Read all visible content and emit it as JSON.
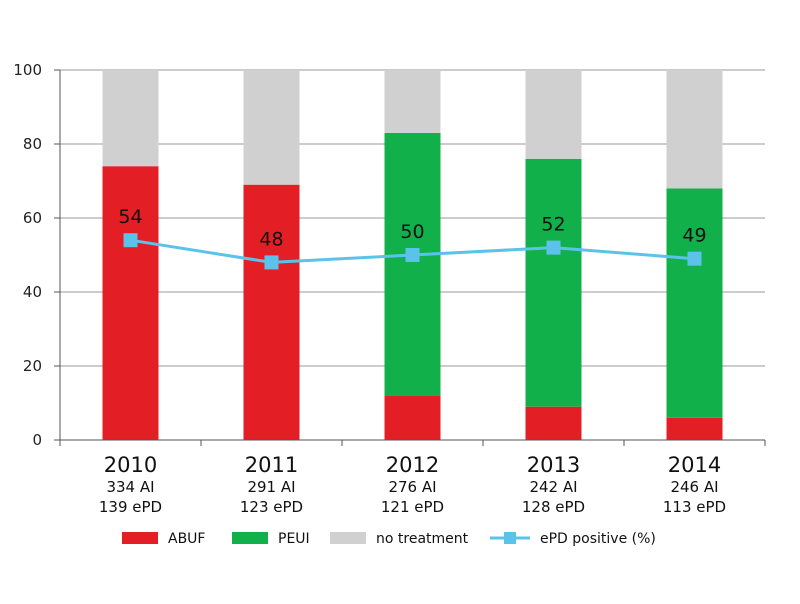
{
  "chart_data": {
    "type": "bar",
    "subtype": "stacked-bar-with-line",
    "title": "",
    "xlabel": "",
    "ylabel": "",
    "ylim": [
      0,
      100
    ],
    "yticks": [
      0,
      20,
      40,
      60,
      80,
      100
    ],
    "grid": true,
    "legend_position": "bottom",
    "categories": [
      "2010",
      "2011",
      "2012",
      "2013",
      "2014"
    ],
    "category_sublabels": [
      [
        "334 AI",
        "139 ePD"
      ],
      [
        "291 AI",
        "123 ePD"
      ],
      [
        "276 AI",
        "121 ePD"
      ],
      [
        "242 AI",
        "128 ePD"
      ],
      [
        "246 AI",
        "113 ePD"
      ]
    ],
    "series": [
      {
        "name": "ABUF",
        "kind": "bar",
        "color": "#e31e24",
        "values": [
          74,
          69,
          12,
          9,
          6
        ]
      },
      {
        "name": "PEUI",
        "kind": "bar",
        "color": "#12b04a",
        "values": [
          0,
          0,
          71,
          67,
          62
        ]
      },
      {
        "name": "no treatment",
        "kind": "bar",
        "color": "#d0d0d0",
        "values": [
          26,
          31,
          17,
          24,
          32
        ]
      },
      {
        "name": "ePD positive (%)",
        "kind": "line",
        "color": "#5bc3ea",
        "marker": "square",
        "values": [
          54,
          48,
          50,
          52,
          49
        ]
      }
    ],
    "data_labels": [
      "54",
      "48",
      "50",
      "52",
      "49"
    ]
  }
}
